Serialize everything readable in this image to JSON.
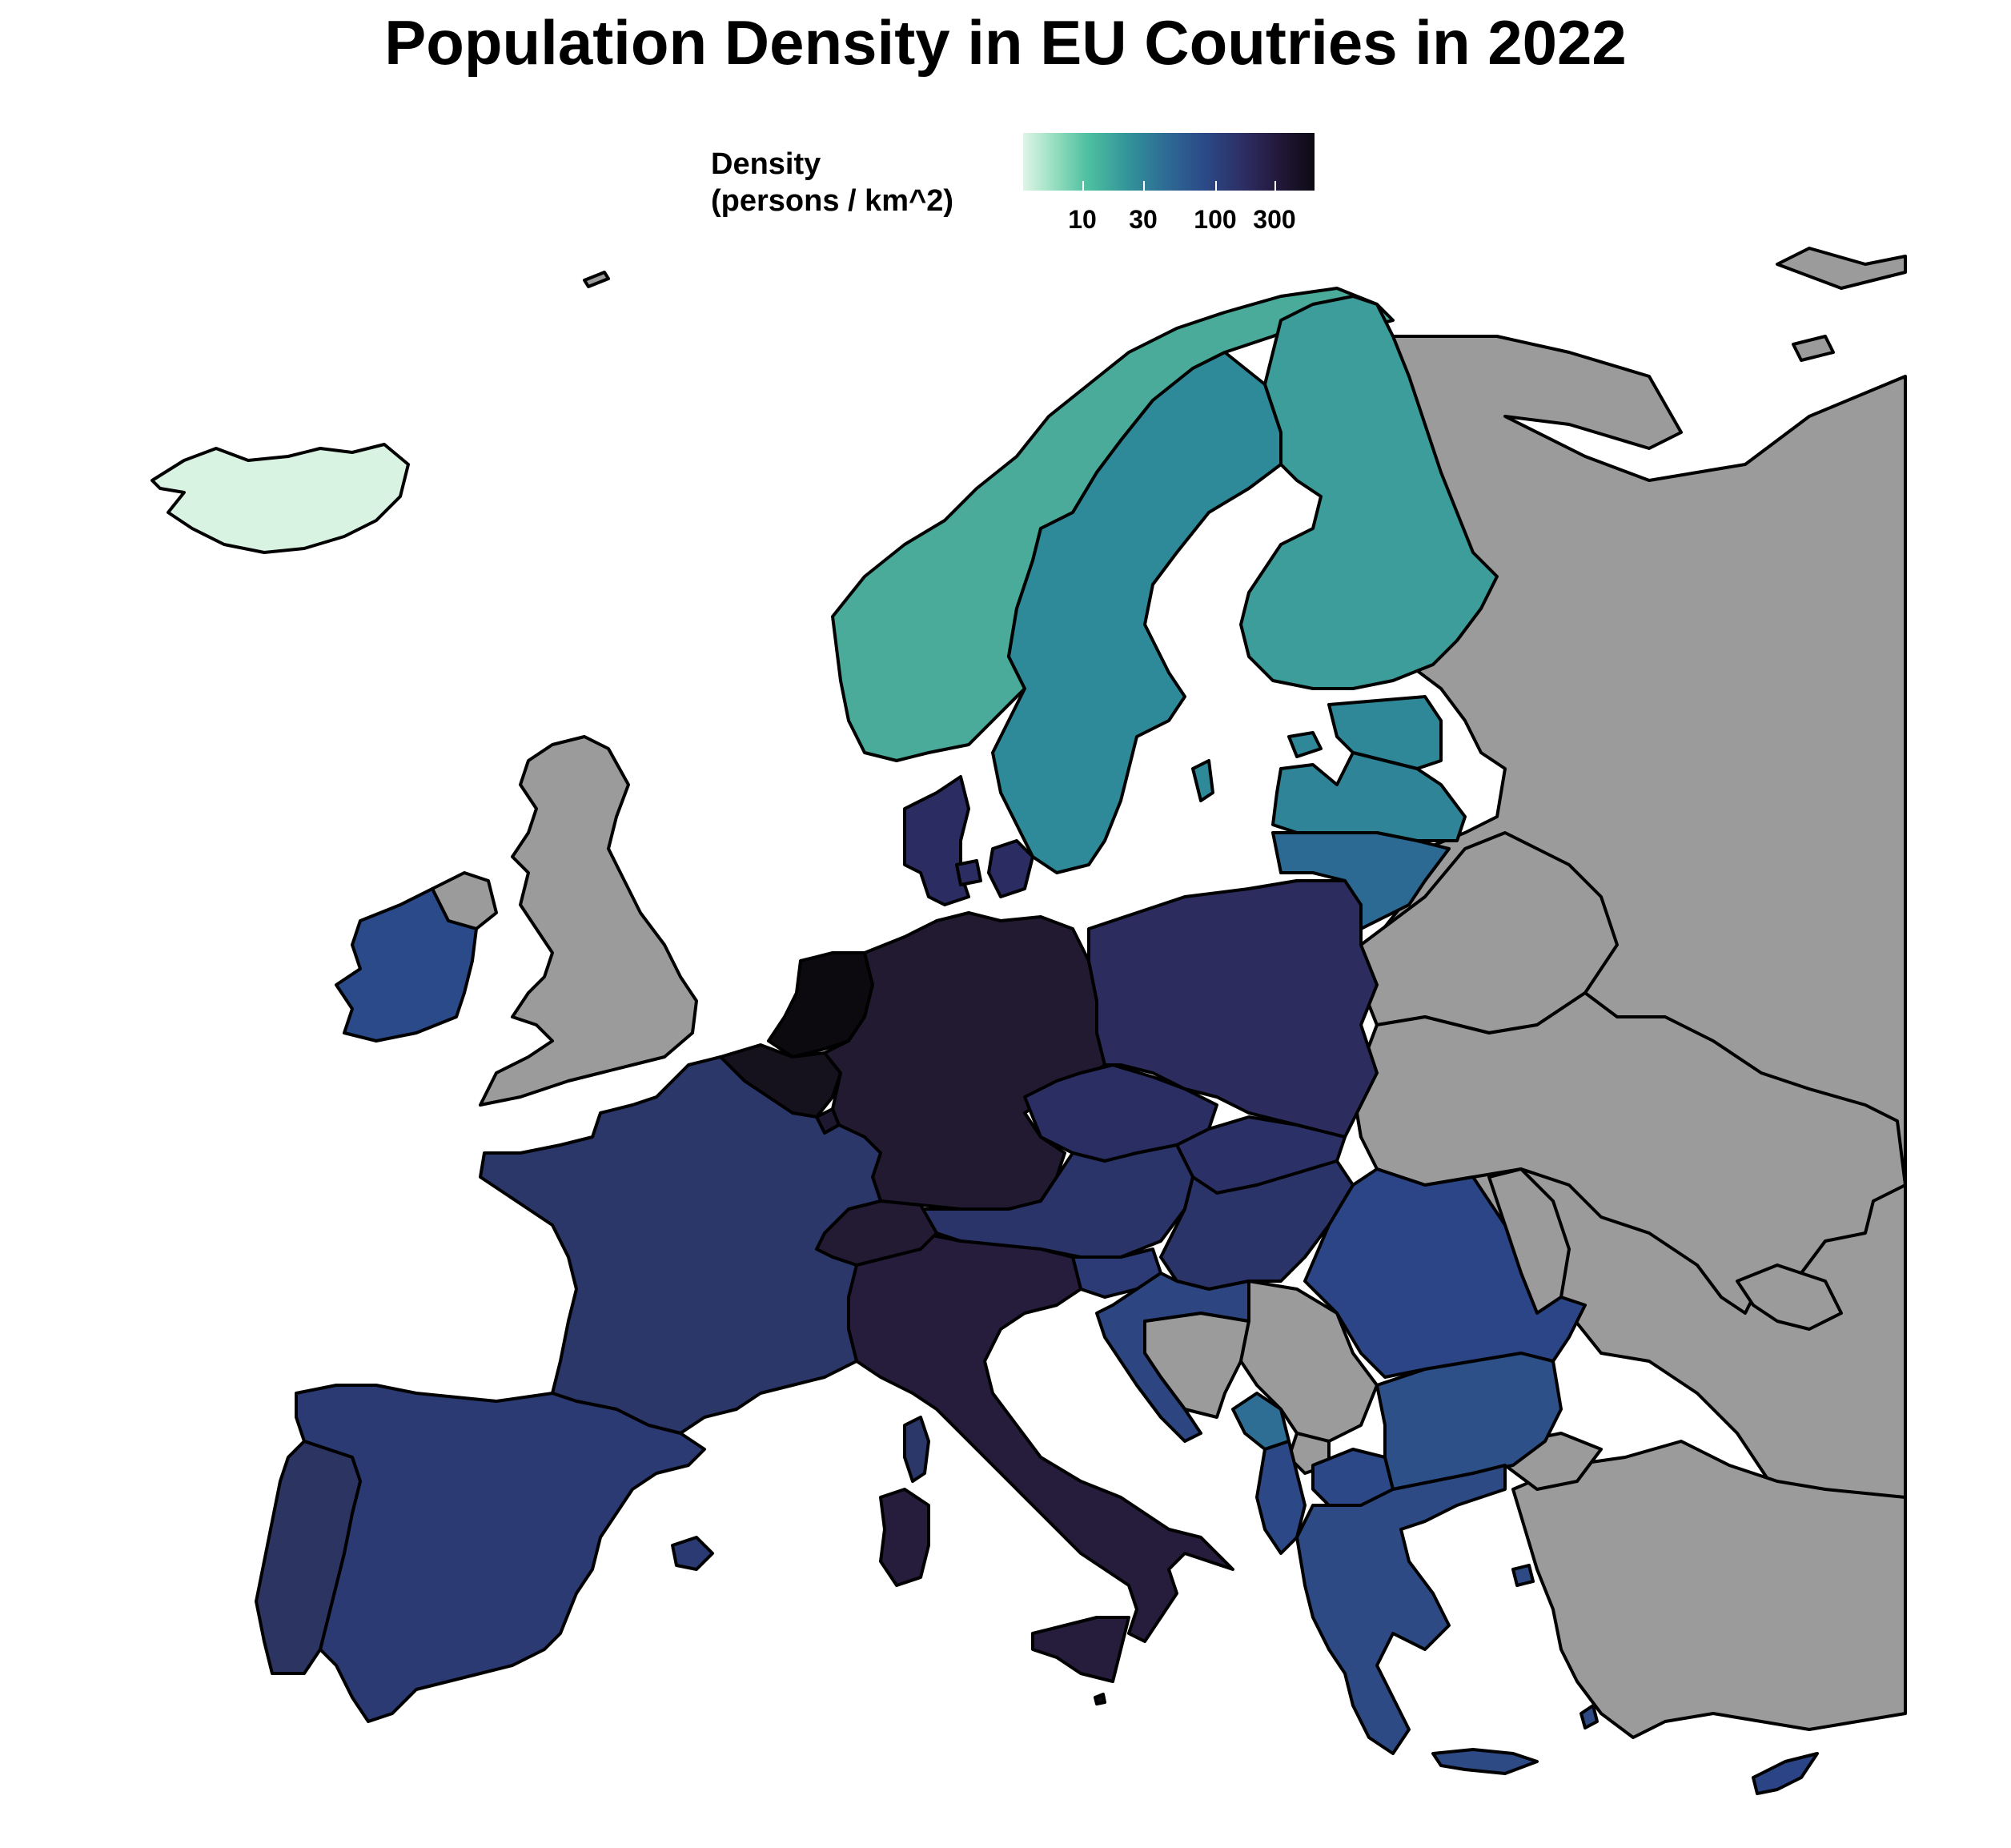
{
  "title": "Population Density in EU Coutries in 2022",
  "legend": {
    "title_line1": "Density",
    "title_line2": "(persons / km^2)",
    "scale": "log",
    "ticks": [
      "10",
      "30",
      "100",
      "300"
    ],
    "colors": [
      "#dff5e6",
      "#4fc0a0",
      "#329499",
      "#2b4a88",
      "#2d2d62",
      "#0d0a12"
    ]
  },
  "colors": {
    "no_data": "#9b9b9b",
    "iceland": "#d9f3e2",
    "norway": "#4aab9b",
    "sweden": "#2e8a99",
    "finland": "#3d9d9b",
    "estonia": "#2f8898",
    "latvia": "#2f8597",
    "lithuania": "#2c6a94",
    "ireland": "#2a4a8a",
    "denmark": "#2b2d62",
    "netherlands": "#0c0a0e",
    "belgium": "#15111d",
    "germany": "#211a30",
    "poland": "#2c2c5e",
    "czechia": "#2b2e63",
    "slovakia": "#2b3066",
    "austria": "#2b3468",
    "hungary": "#2b3468",
    "slovenia": "#2c3a75",
    "croatia": "#2d4580",
    "romania": "#2c4586",
    "bulgaria": "#2d5089",
    "greece": "#2d4a84",
    "cyprus": "#2b4486",
    "france": "#2b3769",
    "spain": "#2b3a72",
    "portugal": "#2c3462",
    "italy": "#261d3c",
    "switzerland": "#231b33",
    "luxembourg": "#1d1830",
    "malta": "#0d0a12",
    "montenegro": "#2e6d94",
    "north_macedonia": "#2c4887",
    "albania": "#2c4887"
  }
}
